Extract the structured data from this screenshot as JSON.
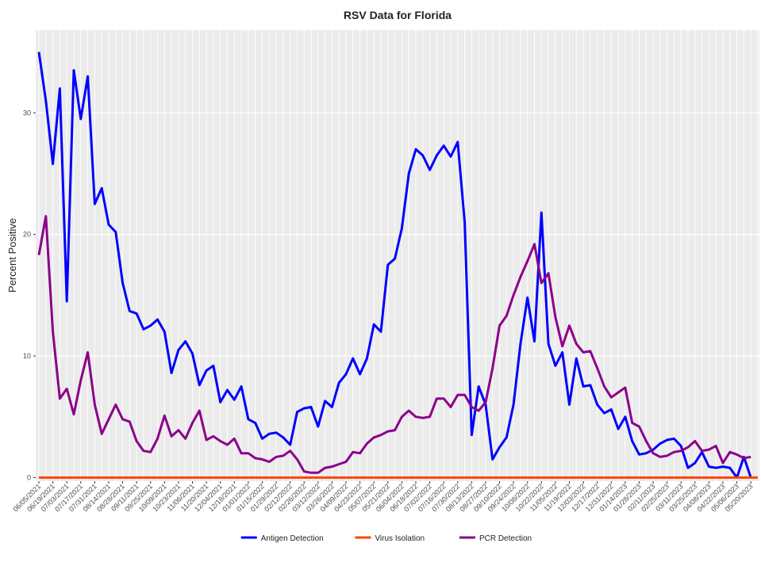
{
  "chart_data": {
    "type": "line",
    "title": "RSV Data for Florida",
    "y_label": "Percent Positive",
    "categories": [
      "06/05/2021",
      null,
      "06/19/2021",
      null,
      "07/03/2021",
      null,
      "07/17/2021",
      null,
      "07/31/2021",
      null,
      "08/14/2021",
      null,
      "08/28/2021",
      null,
      "09/11/2021",
      null,
      "09/25/2021",
      null,
      "10/09/2021",
      null,
      "10/23/2021",
      null,
      "11/06/2021",
      null,
      "11/20/2021",
      null,
      "12/04/2021",
      null,
      "12/18/2021",
      null,
      "01/01/2022",
      null,
      "01/15/2022",
      null,
      "01/29/2022",
      null,
      "02/12/2022",
      null,
      "02/26/2022",
      null,
      "03/12/2022",
      null,
      "03/26/2022",
      null,
      "04/09/2022",
      null,
      "04/23/2022",
      null,
      "05/07/2022",
      null,
      "05/21/2022",
      null,
      "06/04/2022",
      null,
      "06/18/2022",
      null,
      "07/02/2022",
      null,
      "07/16/2022",
      null,
      "07/30/2022",
      null,
      "08/13/2022",
      null,
      "08/27/2022",
      null,
      "09/10/2022",
      null,
      "09/24/2022",
      null,
      "10/08/2022",
      null,
      "10/22/2022",
      null,
      "11/05/2022",
      null,
      "11/19/2022",
      null,
      "12/03/2022",
      null,
      "12/17/2022",
      null,
      "12/31/2022",
      null,
      "01/14/2023",
      null,
      "01/28/2023",
      null,
      "02/11/2023",
      null,
      "02/25/2023",
      null,
      "03/11/2023",
      null,
      "03/25/2023",
      null,
      "04/08/2023",
      null,
      "04/22/2023",
      null,
      "05/06/2023",
      null,
      "05/20/2023",
      null
    ],
    "series": [
      {
        "name": "Antigen Detection",
        "color": "#0000ff",
        "values": [
          35,
          31,
          25.8,
          32,
          14.5,
          33.5,
          29.5,
          33,
          22.5,
          23.8,
          20.8,
          20.2,
          16,
          13.7,
          13.5,
          12.2,
          12.5,
          13,
          12,
          8.6,
          10.5,
          11.2,
          10.2,
          7.6,
          8.8,
          9.2,
          6.2,
          7.2,
          6.4,
          7.5,
          4.8,
          4.5,
          3.2,
          3.6,
          3.7,
          3.3,
          2.7,
          5.4,
          5.7,
          5.8,
          4.2,
          6.3,
          5.8,
          7.8,
          8.5,
          9.8,
          8.5,
          9.8,
          12.6,
          12,
          17.5,
          18,
          20.5,
          25,
          27,
          26.5,
          25.3,
          26.5,
          27.3,
          26.4,
          27.6,
          21,
          3.5,
          7.5,
          6,
          1.5,
          2.5,
          3.3,
          6,
          11,
          14.8,
          11.2,
          21.8,
          11,
          9.2,
          10.3,
          6,
          9.8,
          7.5,
          7.6,
          6,
          5.3,
          5.6,
          4,
          5,
          3,
          1.9,
          2,
          2.3,
          2.8,
          3.1,
          3.2,
          2.6,
          0.8,
          1.2,
          2.1,
          0.9,
          0.8,
          0.9,
          0.8,
          0,
          1.7,
          0,
          null
        ]
      },
      {
        "name": "Virus Isolation",
        "color": "#ff4500",
        "values": [
          0,
          0,
          0,
          0,
          0,
          0,
          0,
          0,
          0,
          0,
          0,
          0,
          0,
          0,
          0,
          0,
          0,
          0,
          0,
          0,
          0,
          0,
          0,
          0,
          0,
          0,
          0,
          0,
          0,
          0,
          0,
          0,
          0,
          0,
          0,
          0,
          0,
          0,
          0,
          0,
          0,
          0,
          0,
          0,
          0,
          0,
          0,
          0,
          0,
          0,
          0,
          0,
          0,
          0,
          0,
          0,
          0,
          0,
          0,
          0,
          0,
          0,
          0,
          0,
          0,
          0,
          0,
          0,
          0,
          0,
          0,
          0,
          0,
          0,
          0,
          0,
          0,
          0,
          0,
          0,
          0,
          0,
          0,
          0,
          0,
          0,
          0,
          0,
          0,
          0,
          0,
          0,
          0,
          0,
          0,
          0,
          0,
          0,
          0,
          0,
          0,
          0,
          0,
          0
        ]
      },
      {
        "name": "PCR Detection",
        "color": "#8b008b",
        "values": [
          18.3,
          21.5,
          12,
          6.5,
          7.3,
          5.2,
          8,
          10.3,
          6,
          3.6,
          4.8,
          6,
          4.8,
          4.6,
          3,
          2.2,
          2.1,
          3.2,
          5.1,
          3.4,
          3.9,
          3.2,
          4.5,
          5.5,
          3.1,
          3.4,
          3,
          2.7,
          3.2,
          2,
          2,
          1.6,
          1.5,
          1.3,
          1.7,
          1.8,
          2.2,
          1.5,
          0.5,
          0.4,
          0.4,
          0.8,
          0.9,
          1.1,
          1.3,
          2.1,
          2,
          2.8,
          3.3,
          3.5,
          3.8,
          3.9,
          5,
          5.5,
          5,
          4.9,
          5,
          6.5,
          6.5,
          5.8,
          6.8,
          6.8,
          5.8,
          5.5,
          6.2,
          9,
          12.5,
          13.3,
          15,
          16.5,
          17.8,
          19.2,
          16,
          16.8,
          13.2,
          10.8,
          12.5,
          11,
          10.3,
          10.4,
          9,
          7.5,
          6.6,
          7,
          7.4,
          4.5,
          4.2,
          3,
          2,
          1.7,
          1.8,
          2.1,
          2.2,
          2.5,
          3,
          2.2,
          2.3,
          2.6,
          1.2,
          2.1,
          1.9,
          1.6,
          1.7,
          null
        ]
      }
    ],
    "ylim": [
      -0.3,
      36.8
    ],
    "yticks": [
      0,
      10,
      20,
      30
    ],
    "grid": true,
    "legend": "bottom"
  }
}
